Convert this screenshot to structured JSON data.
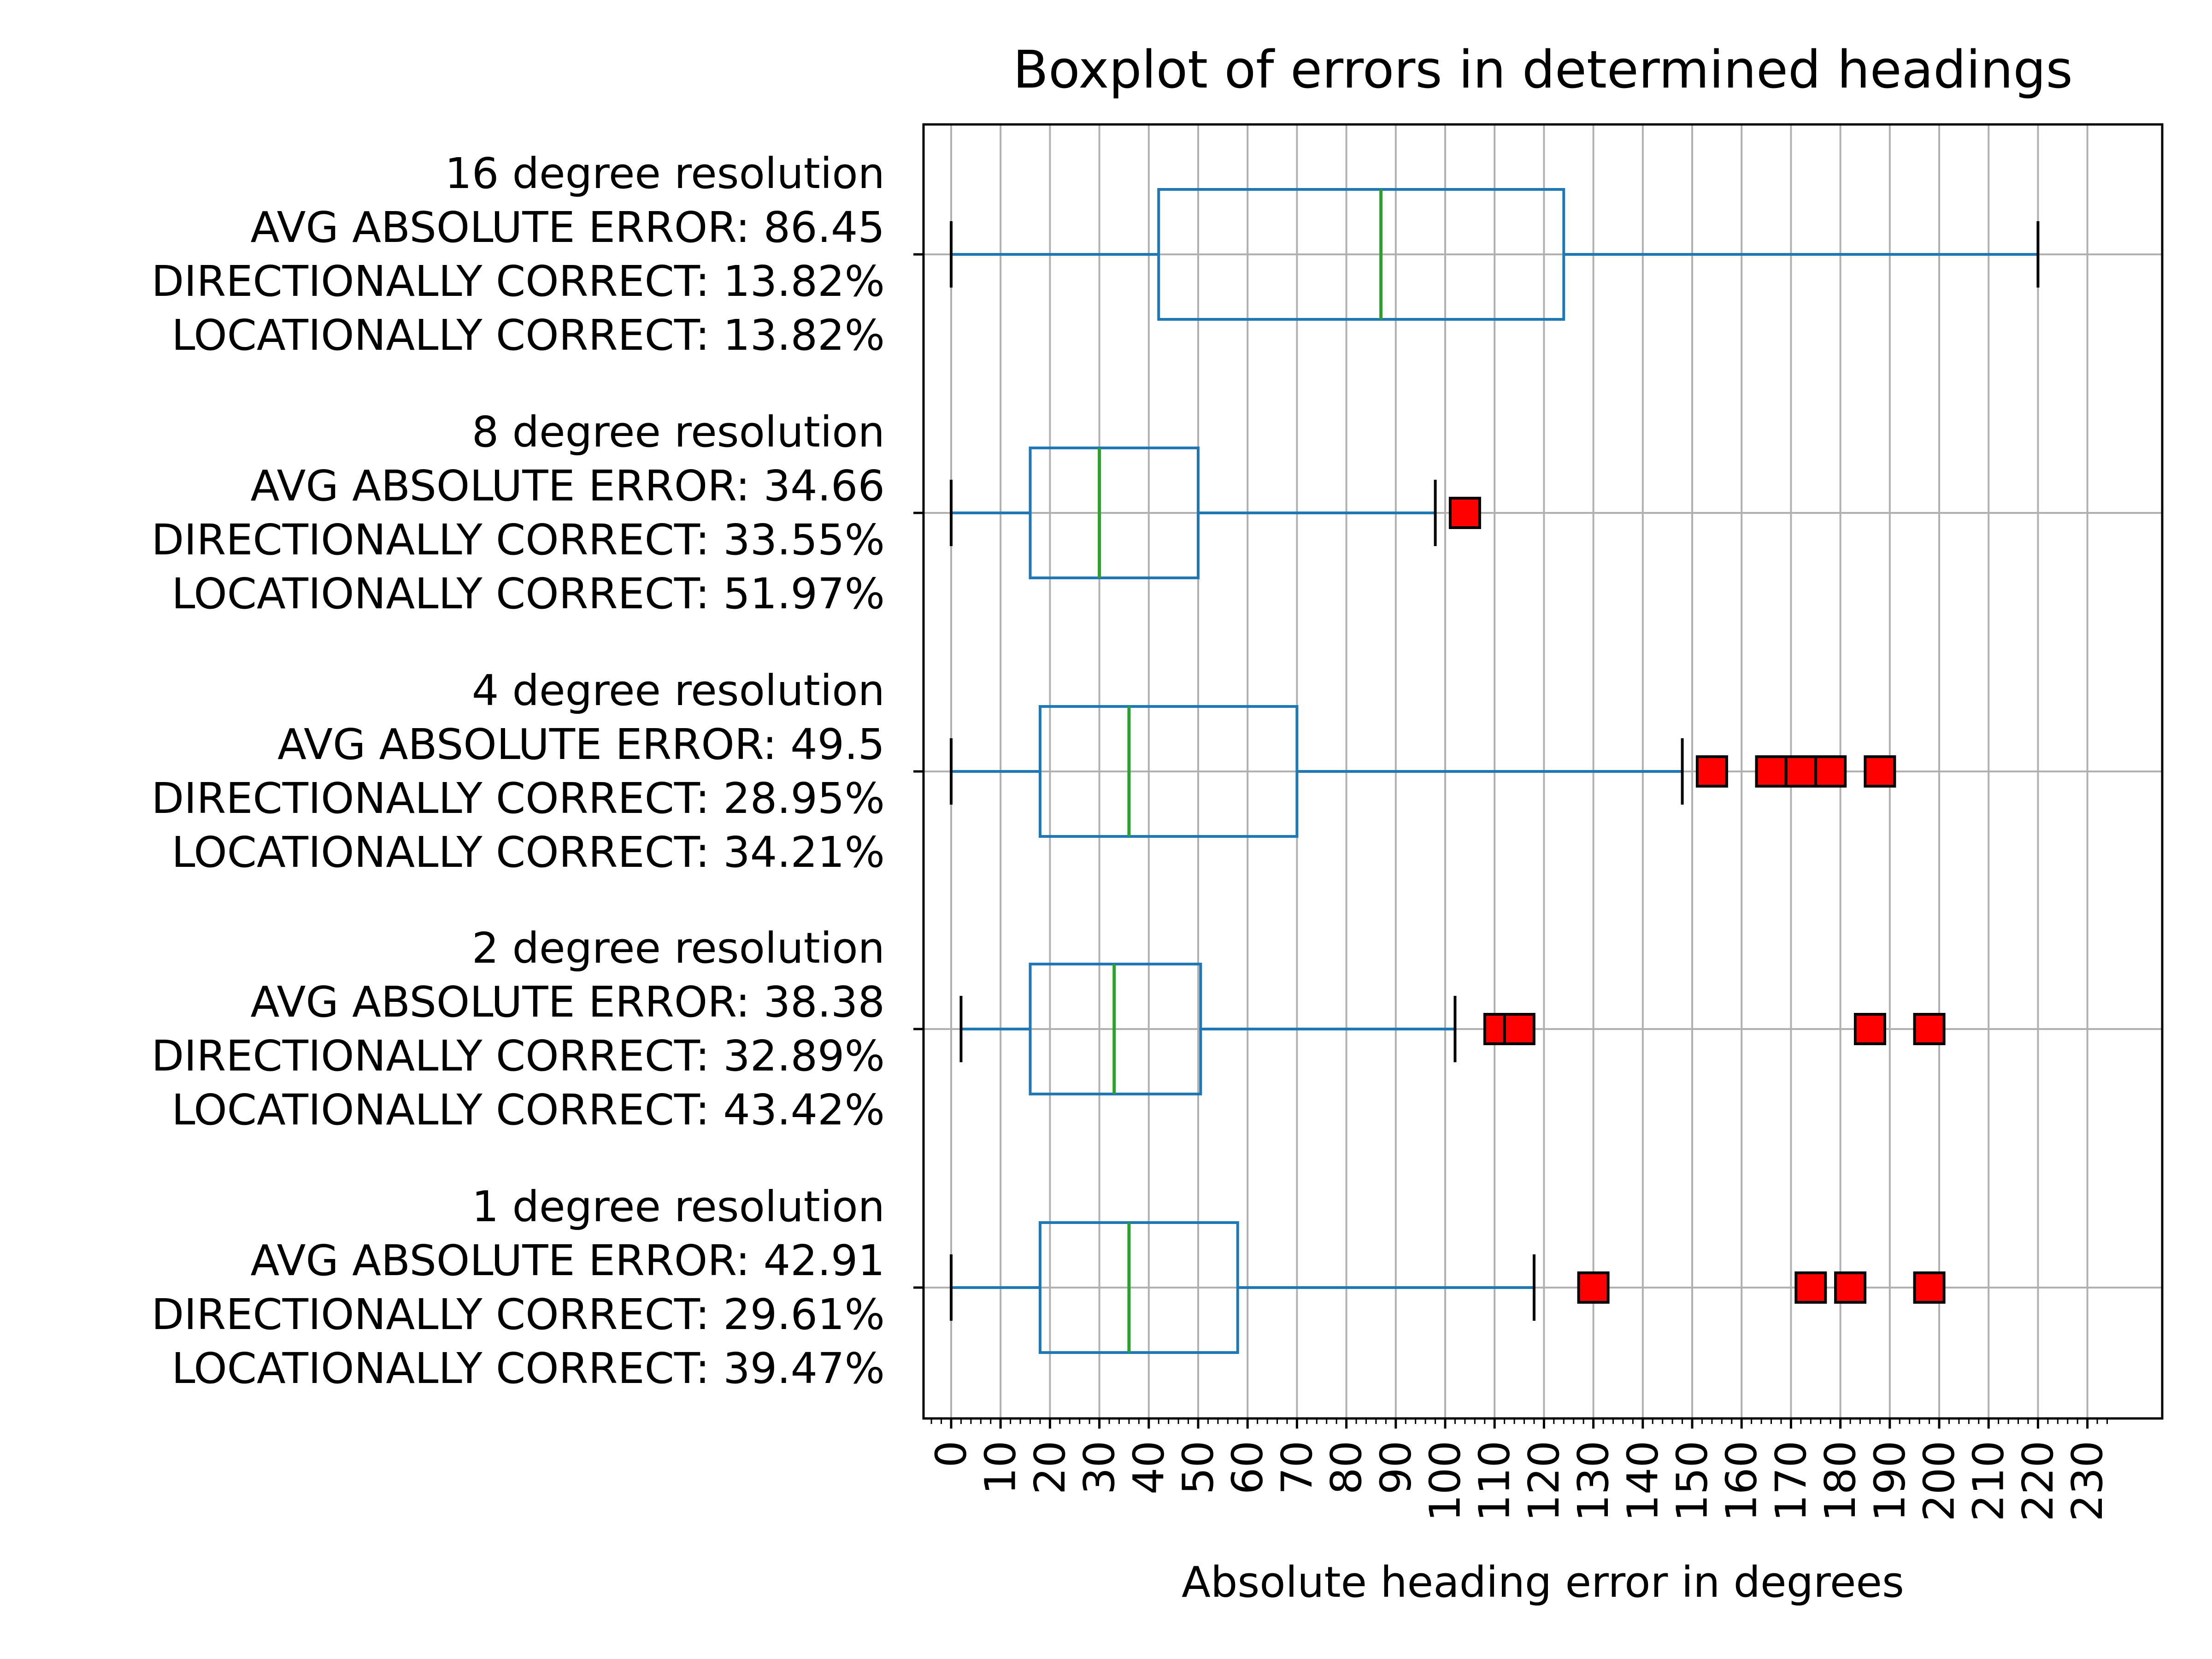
{
  "chart_data": {
    "type": "boxplot",
    "orientation": "horizontal",
    "title": "Boxplot of errors in determined headings",
    "xlabel": "Absolute heading error in degrees",
    "ylabel": "",
    "xlim": [
      -5,
      235
    ],
    "xticks": [
      0,
      10,
      20,
      30,
      40,
      50,
      60,
      70,
      80,
      90,
      100,
      110,
      120,
      130,
      140,
      150,
      160,
      170,
      180,
      190,
      200,
      210,
      220,
      230
    ],
    "grid": true,
    "colors": {
      "box": "#1f77b4",
      "median": "#2ca02c",
      "whisker_cap": "#000000",
      "outlier_fill": "#ff0000",
      "outlier_edge": "#000000",
      "grid": "#b0b0b0"
    },
    "categories": [
      {
        "label": [
          "16 degree resolution",
          "AVG ABSOLUTE ERROR: 86.45",
          "DIRECTIONALLY CORRECT: 13.82%",
          "LOCATIONALLY CORRECT: 13.82%"
        ],
        "whisker_low": 0,
        "q1": 42,
        "median": 87,
        "q3": 124,
        "whisker_high": 220,
        "outliers": []
      },
      {
        "label": [
          "8 degree resolution",
          "AVG ABSOLUTE ERROR: 34.66",
          "DIRECTIONALLY CORRECT: 33.55%",
          "LOCATIONALLY CORRECT: 51.97%"
        ],
        "whisker_low": 0,
        "q1": 16,
        "median": 30,
        "q3": 50,
        "whisker_high": 98,
        "outliers": [
          104
        ]
      },
      {
        "label": [
          "4 degree resolution",
          "AVG ABSOLUTE ERROR: 49.5",
          "DIRECTIONALLY CORRECT: 28.95%",
          "LOCATIONALLY CORRECT: 34.21%"
        ],
        "whisker_low": 0,
        "q1": 18,
        "median": 36,
        "q3": 70,
        "whisker_high": 148,
        "outliers": [
          154,
          166,
          172,
          178,
          188
        ]
      },
      {
        "label": [
          "2 degree resolution",
          "AVG ABSOLUTE ERROR: 38.38",
          "DIRECTIONALLY CORRECT: 32.89%",
          "LOCATIONALLY CORRECT: 43.42%"
        ],
        "whisker_low": 2,
        "q1": 16,
        "median": 33,
        "q3": 50.5,
        "whisker_high": 102,
        "outliers": [
          111,
          115,
          186,
          198
        ]
      },
      {
        "label": [
          "1 degree resolution",
          "AVG ABSOLUTE ERROR: 42.91",
          "DIRECTIONALLY CORRECT: 29.61%",
          "LOCATIONALLY CORRECT: 39.47%"
        ],
        "whisker_low": 0,
        "q1": 18,
        "median": 36,
        "q3": 58,
        "whisker_high": 118,
        "outliers": [
          130,
          174,
          182,
          198
        ]
      }
    ]
  }
}
